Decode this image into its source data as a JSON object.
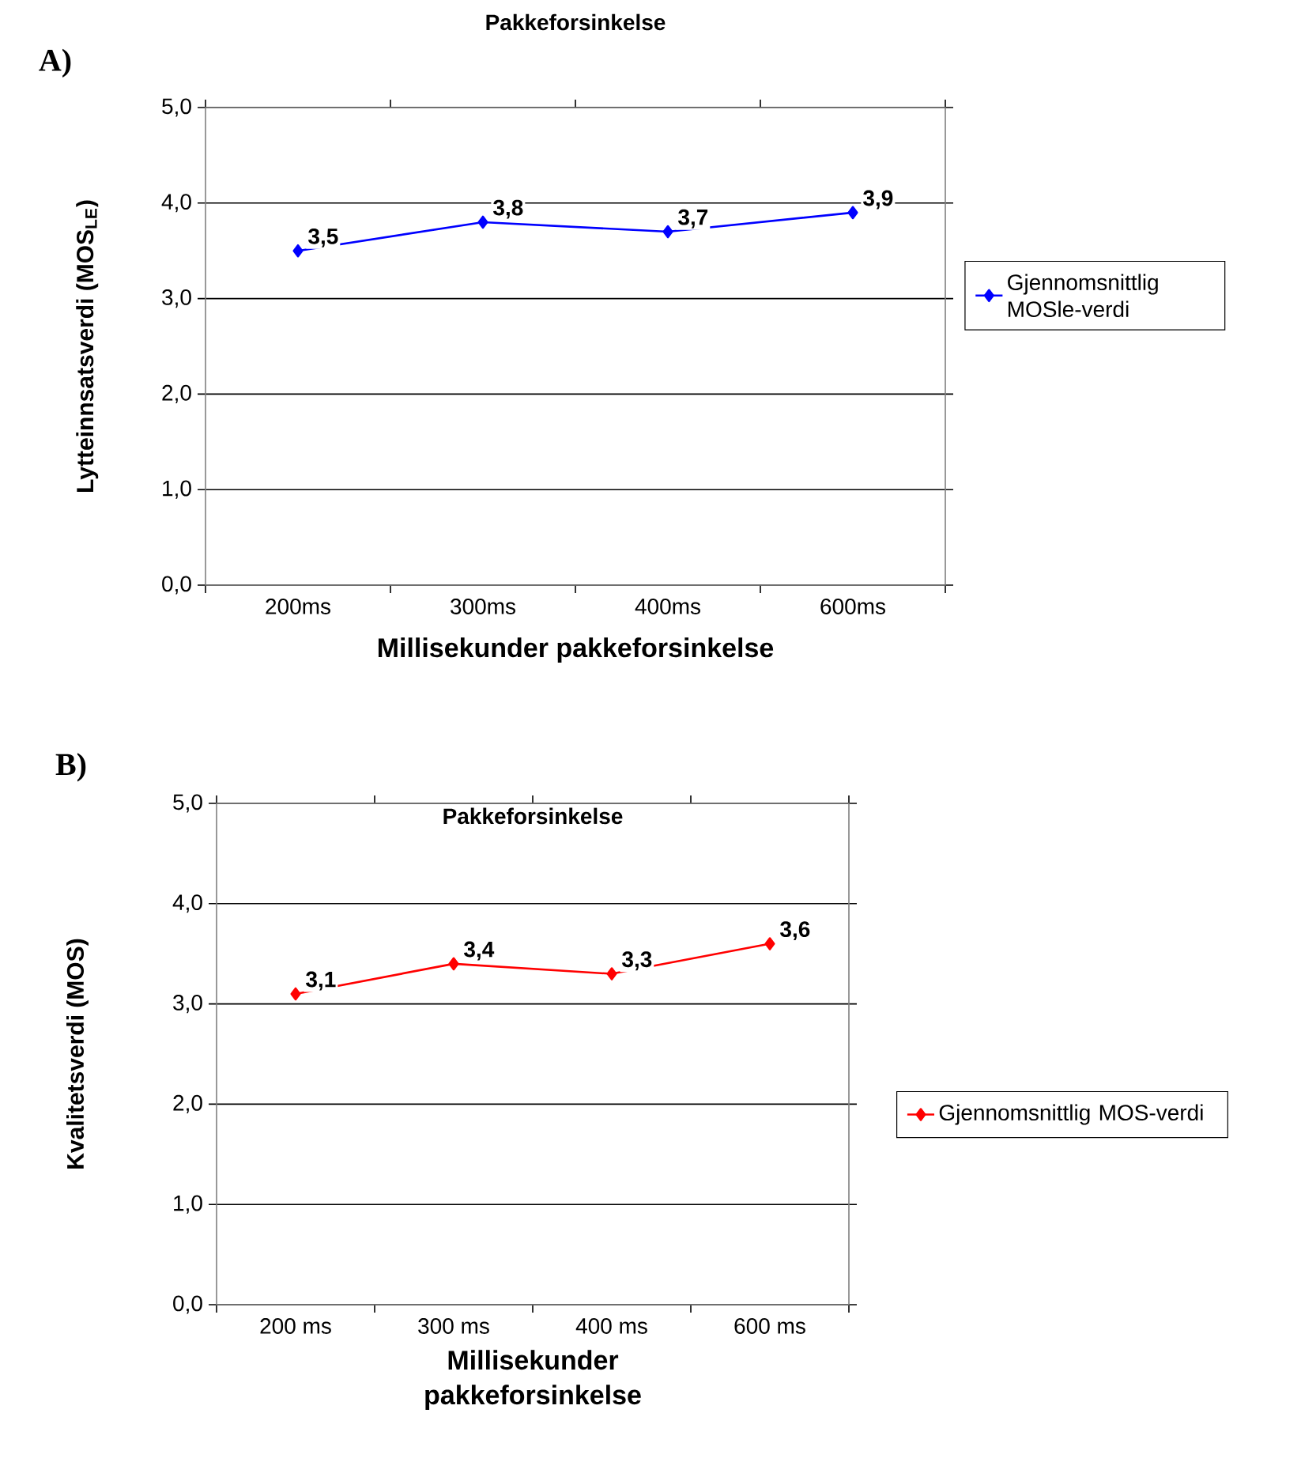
{
  "chart_data": [
    {
      "type": "line",
      "title": "Pakkeforsinkelse",
      "xlabel": "Millisekunder pakkeforsinkelse",
      "ylabel": "Lytteinnsatsverdi (MOS$_{LE}$)",
      "annotations": [
        "A)"
      ],
      "categories": [
        "200ms",
        "300ms",
        "400ms",
        "600ms"
      ],
      "series": [
        {
          "name": "Gjennomsnittlig MOSle-verdi",
          "color": "#0000ff",
          "values": [
            3.5,
            3.8,
            3.7,
            3.9
          ],
          "value_labels": [
            "3,5",
            "3,8",
            "3,7",
            "3,9"
          ]
        }
      ],
      "ylim": [
        0,
        5
      ],
      "yticks": [
        {
          "value": 0,
          "label": "0,0"
        },
        {
          "value": 1,
          "label": "1,0"
        },
        {
          "value": 2,
          "label": "2,0"
        },
        {
          "value": 3,
          "label": "3,0"
        },
        {
          "value": 4,
          "label": "4,0"
        },
        {
          "value": 5,
          "label": "5,0"
        }
      ],
      "grid": "y",
      "legend": "right",
      "marker": "diamond",
      "line_style": "solid"
    },
    {
      "type": "line",
      "title": "Pakkeforsinkelse",
      "xlabel": "Millisekunder pakkeforsinkelse",
      "ylabel": "Kvalitetsverdi (MOS)",
      "annotations": [
        "B)"
      ],
      "categories": [
        "200 ms",
        "300 ms",
        "400 ms",
        "600 ms"
      ],
      "series": [
        {
          "name": "Gjennomsnittlig MOS-verdi",
          "color": "#ff0000",
          "values": [
            3.1,
            3.4,
            3.3,
            3.6
          ],
          "value_labels": [
            "3,1",
            "3,4",
            "3,3",
            "3,6"
          ]
        }
      ],
      "ylim": [
        0,
        5
      ],
      "yticks": [
        {
          "value": 0,
          "label": "0,0"
        },
        {
          "value": 1,
          "label": "1,0"
        },
        {
          "value": 2,
          "label": "2,0"
        },
        {
          "value": 3,
          "label": "3,0"
        },
        {
          "value": 4,
          "label": "4,0"
        },
        {
          "value": 5,
          "label": "5,0"
        }
      ],
      "grid": "y",
      "legend": "right",
      "marker": "diamond",
      "line_style": "solid"
    }
  ]
}
